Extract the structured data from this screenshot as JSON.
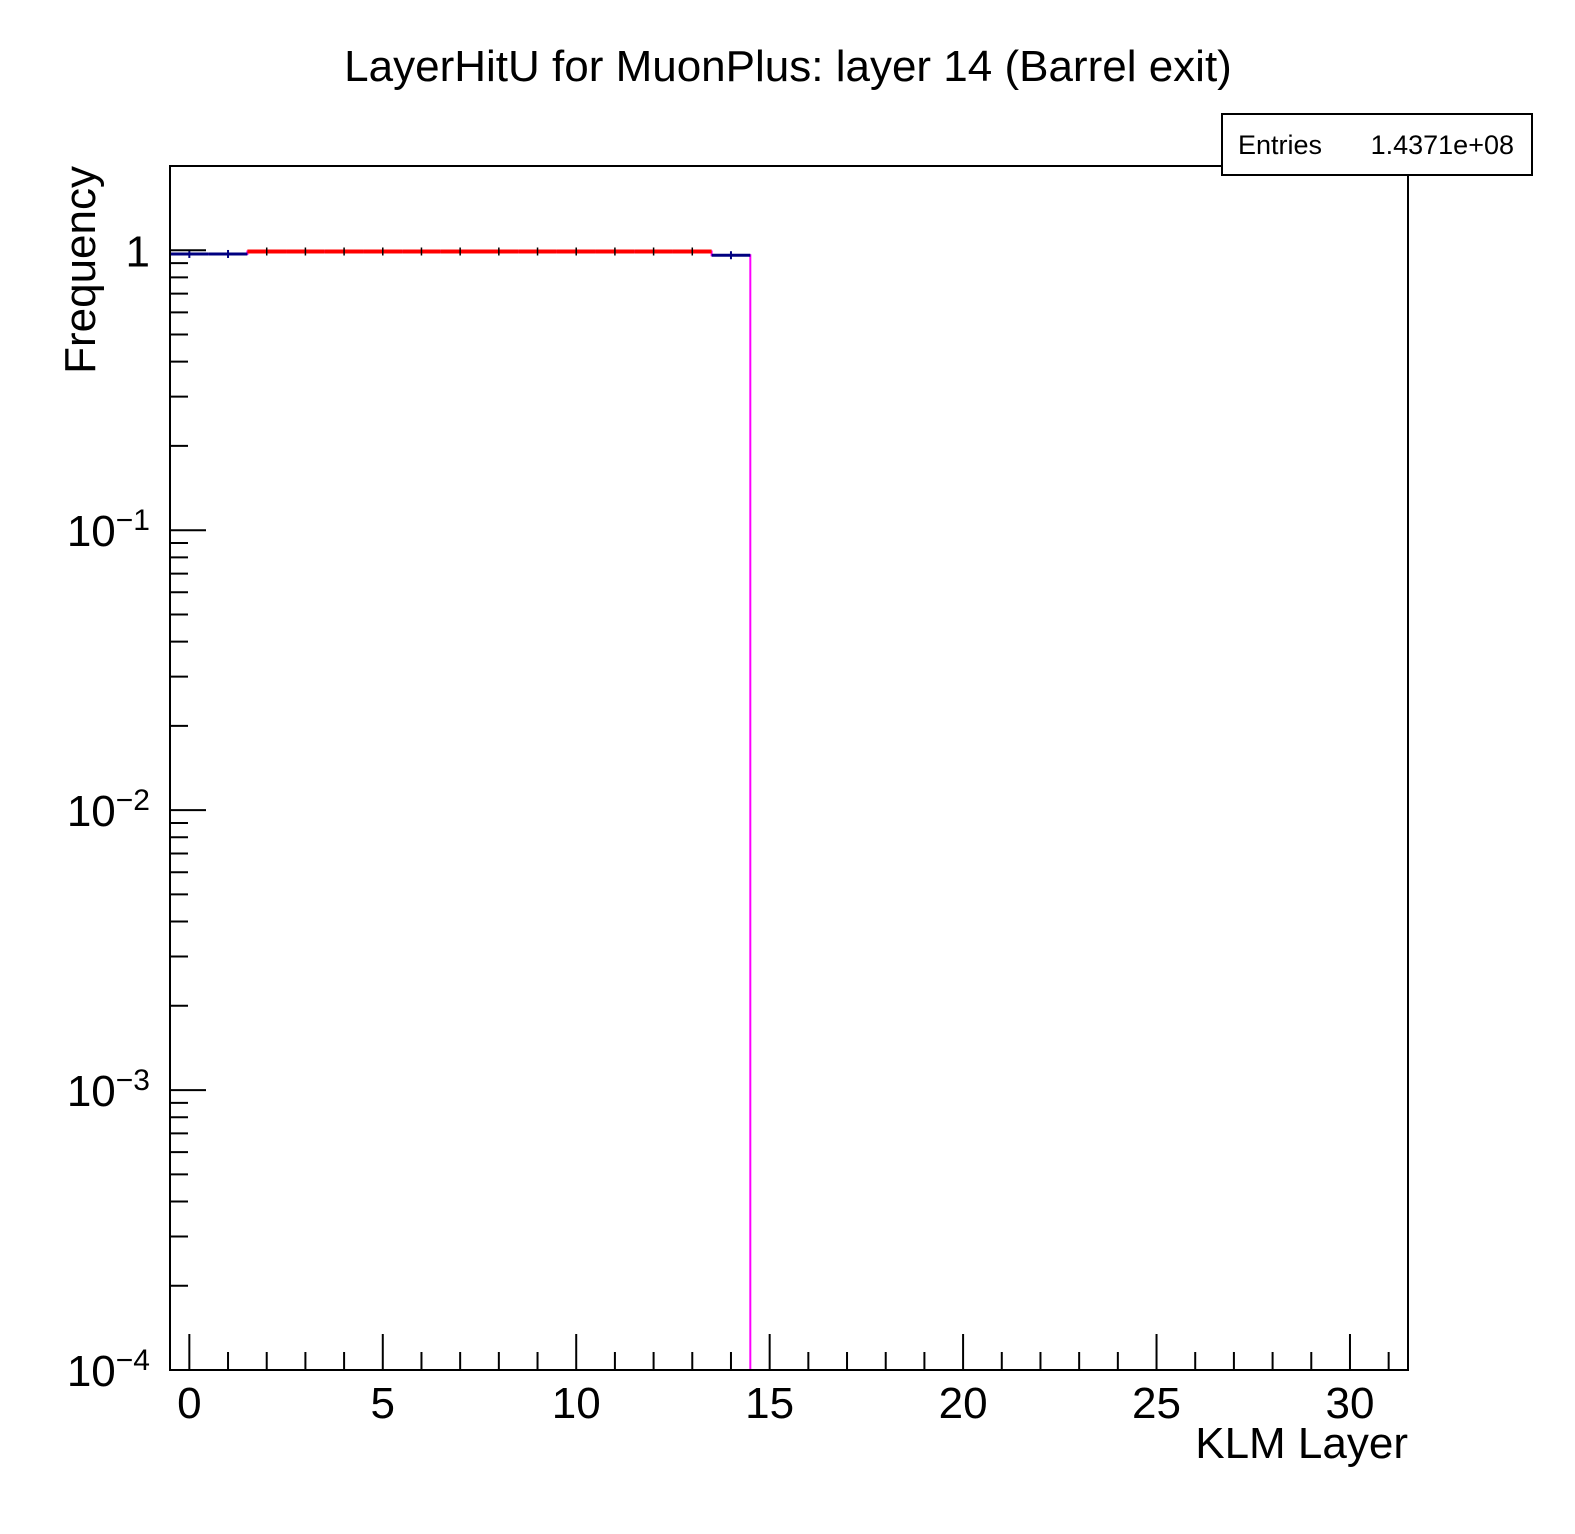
{
  "chart_data": {
    "type": "histogram",
    "title": "LayerHitU for MuonPlus: layer 14 (Barrel exit)",
    "xlabel": "KLM Layer",
    "ylabel": "Frequency",
    "xlim": [
      -0.5,
      31.5
    ],
    "ylim": [
      0.0001,
      2
    ],
    "log_y": true,
    "grid": false,
    "x_ticks": [
      0,
      5,
      10,
      15,
      20,
      25,
      30
    ],
    "y_ticks": [
      {
        "value": 0.0001,
        "base": "10",
        "exp": "−4"
      },
      {
        "value": 0.001,
        "base": "10",
        "exp": "−3"
      },
      {
        "value": 0.01,
        "base": "10",
        "exp": "−2"
      },
      {
        "value": 0.1,
        "base": "10",
        "exp": "−1"
      },
      {
        "value": 1,
        "base": "1",
        "exp": ""
      }
    ],
    "bins": {
      "edges_start": -0.5,
      "bin_width": 1,
      "values": [
        0.97,
        0.97,
        0.99,
        0.99,
        0.99,
        0.99,
        0.99,
        0.99,
        0.99,
        0.99,
        0.99,
        0.99,
        0.99,
        0.99,
        0.96,
        0,
        0,
        0,
        0,
        0,
        0,
        0,
        0,
        0,
        0,
        0,
        0,
        0,
        0,
        0,
        0,
        0
      ]
    },
    "series": [
      {
        "color": "#ff00ff",
        "role": "outline"
      },
      {
        "color": "#ff0000",
        "range": [
          2,
          13
        ]
      },
      {
        "color": "#000080",
        "bins": [
          0,
          1,
          14
        ]
      }
    ],
    "stats_box": {
      "label": "Entries",
      "value": "1.4371e+08"
    },
    "legend_position": "top-right"
  }
}
